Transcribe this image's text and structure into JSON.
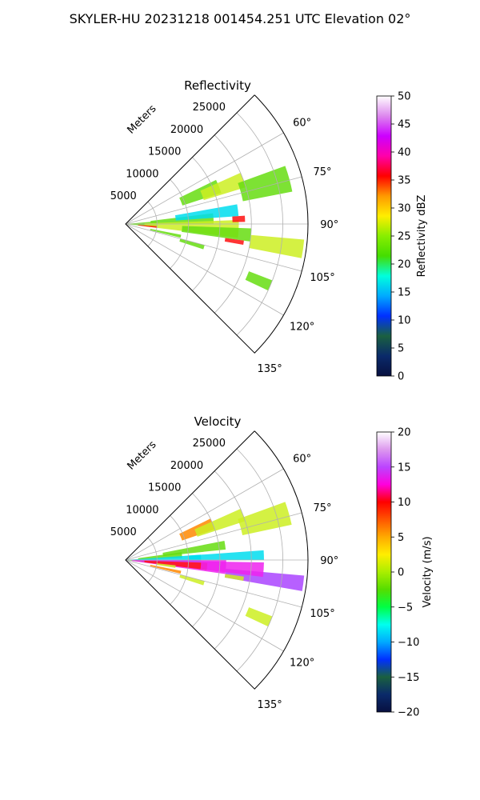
{
  "page": {
    "title": "SKYLER-HU  20231218  001454.251 UTC Elevation 02°"
  },
  "chart_data": [
    {
      "type": "polar-sector",
      "title": "Reflectivity",
      "radial_label": "Meters",
      "radial_ticks": [
        "5000",
        "10000",
        "15000",
        "20000",
        "25000"
      ],
      "range_max_m": 29000,
      "azimuth_range_deg": [
        45,
        135
      ],
      "azimuth_ticks": [
        "60°",
        "75°",
        "90°",
        "105°",
        "120°",
        "135°"
      ],
      "colorbar": {
        "label": "Reflectivity dBZ",
        "range": [
          0,
          50
        ],
        "ticks": [
          "0",
          "5",
          "10",
          "15",
          "20",
          "25",
          "30",
          "35",
          "40",
          "45",
          "50"
        ],
        "stops": [
          "#081040",
          "#0a2a6a",
          "#1a6040",
          "#0030ff",
          "#00aaff",
          "#00ffdd",
          "#44dd00",
          "#88ee00",
          "#ffee00",
          "#ff9900",
          "#ff0000",
          "#ff00aa",
          "#cc00ff",
          "#dd88ee",
          "#ffffff"
        ]
      },
      "grid": true
    },
    {
      "type": "polar-sector",
      "title": "Velocity",
      "radial_label": "Meters",
      "radial_ticks": [
        "5000",
        "10000",
        "15000",
        "20000",
        "25000"
      ],
      "range_max_m": 29000,
      "azimuth_range_deg": [
        45,
        135
      ],
      "azimuth_ticks": [
        "60°",
        "75°",
        "90°",
        "105°",
        "120°",
        "135°"
      ],
      "colorbar": {
        "label": "Velocity (m/s)",
        "range": [
          -20,
          20
        ],
        "ticks": [
          "−20",
          "−15",
          "−10",
          "−5",
          "0",
          "5",
          "10",
          "15",
          "20"
        ],
        "stops": [
          "#081040",
          "#0a2a6a",
          "#1a6040",
          "#0030ff",
          "#00aaff",
          "#00ffee",
          "#00ff44",
          "#55dd00",
          "#aaee00",
          "#ffee00",
          "#ffaa00",
          "#ff5500",
          "#ff0000",
          "#ff00dd",
          "#bb44ff",
          "#dd99ee",
          "#ffffff"
        ]
      },
      "grid": true
    }
  ],
  "colors": {
    "gate_green": "#66dd11",
    "gate_yellow": "#ccee22",
    "gate_cyan": "#00ddee",
    "gate_red": "#ff1111",
    "gate_orange": "#ff8800",
    "gate_magenta": "#ee22ee",
    "gate_purple": "#aa44ff",
    "grid": "#b0b0b0"
  }
}
